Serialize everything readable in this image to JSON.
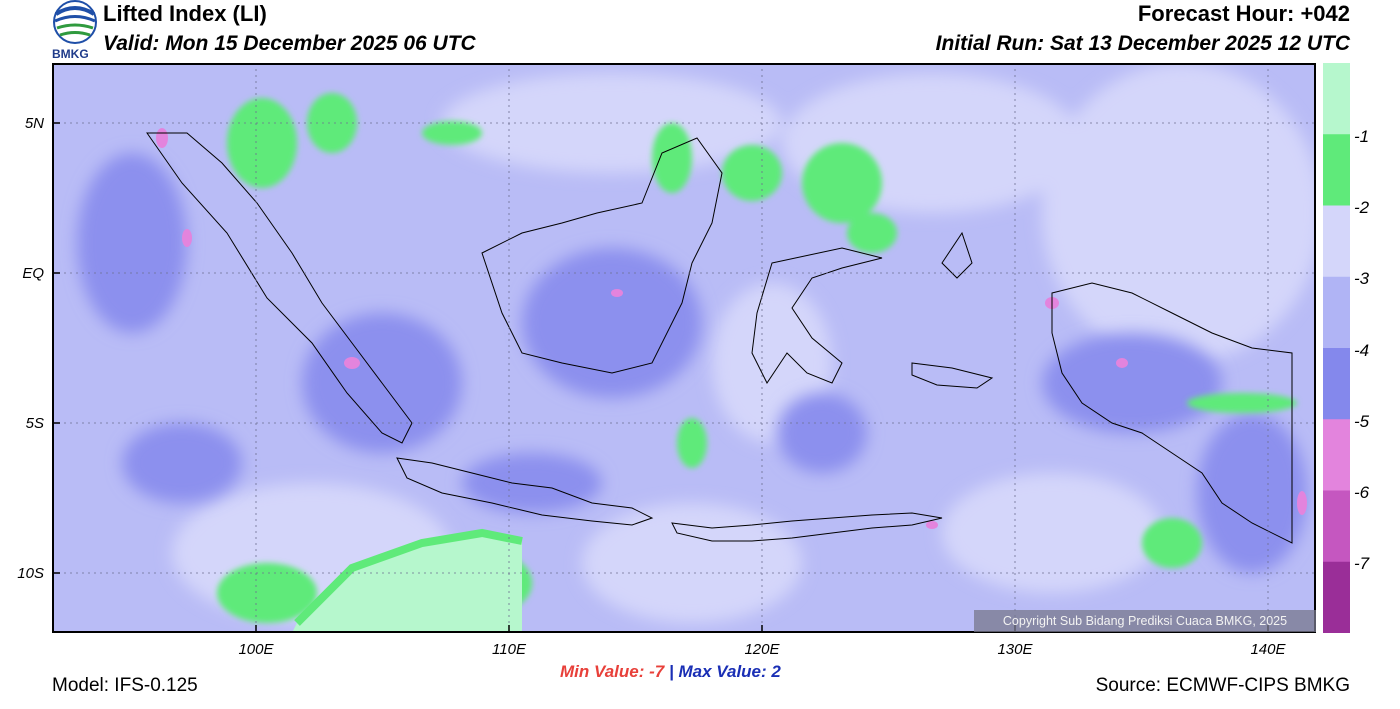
{
  "header": {
    "title": "Lifted Index (LI)",
    "valid": "Valid: Mon 15 December 2025 06 UTC",
    "forecast_hour": "Forecast Hour: +042",
    "initial_run": "Initial Run: Sat 13 December 2025 12 UTC",
    "logo_text": "BMKG"
  },
  "axes": {
    "lat_labels": [
      "5N",
      "EQ",
      "5S",
      "10S"
    ],
    "lon_labels": [
      "100E",
      "110E",
      "120E",
      "130E",
      "140E"
    ]
  },
  "colorbar": {
    "labels": [
      "-1",
      "-2",
      "-3",
      "-4",
      "-5",
      "-6",
      "-7"
    ],
    "colors": [
      "#b6f7cd",
      "#5fea7a",
      "#d4d6fa",
      "#b0b4f5",
      "#8488ec",
      "#e384dd",
      "#c557c0",
      "#9a2e98"
    ]
  },
  "stats": {
    "min_label": "Min Value:",
    "min_value": "-7",
    "separator": "|",
    "max_label": "Max Value:",
    "max_value": "2"
  },
  "footer": {
    "model": "Model: IFS-0.125",
    "source": "Source: ECMWF-CIPS BMKG",
    "copyright": "Copyright Sub Bidang Prediksi Cuaca BMKG, 2025"
  }
}
